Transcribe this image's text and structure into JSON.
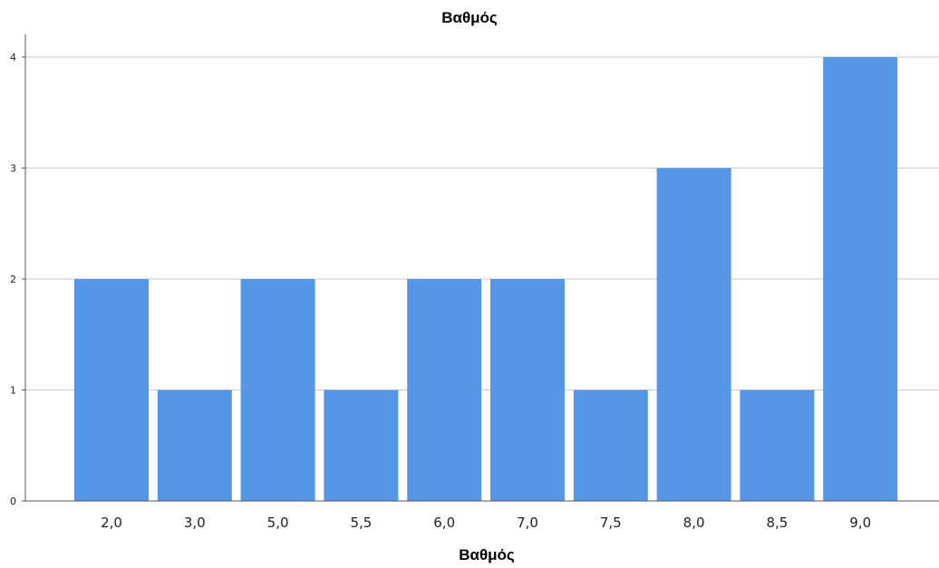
{
  "chart_data": {
    "type": "bar",
    "title": "Βαθμός",
    "xlabel": "Βαθμός",
    "ylabel": "",
    "categories": [
      "2,0",
      "3,0",
      "5,0",
      "5,5",
      "6,0",
      "7,0",
      "7,5",
      "8,0",
      "8,5",
      "9,0"
    ],
    "values": [
      2,
      1,
      2,
      1,
      2,
      2,
      1,
      3,
      1,
      4
    ],
    "ylim": [
      0,
      4
    ],
    "yticks": [
      "0",
      "1",
      "2",
      "3",
      "4"
    ],
    "grid": true,
    "bar_color": "#5596e6",
    "gridline_color": "#c8c8c8",
    "axis_color": "#555555"
  }
}
